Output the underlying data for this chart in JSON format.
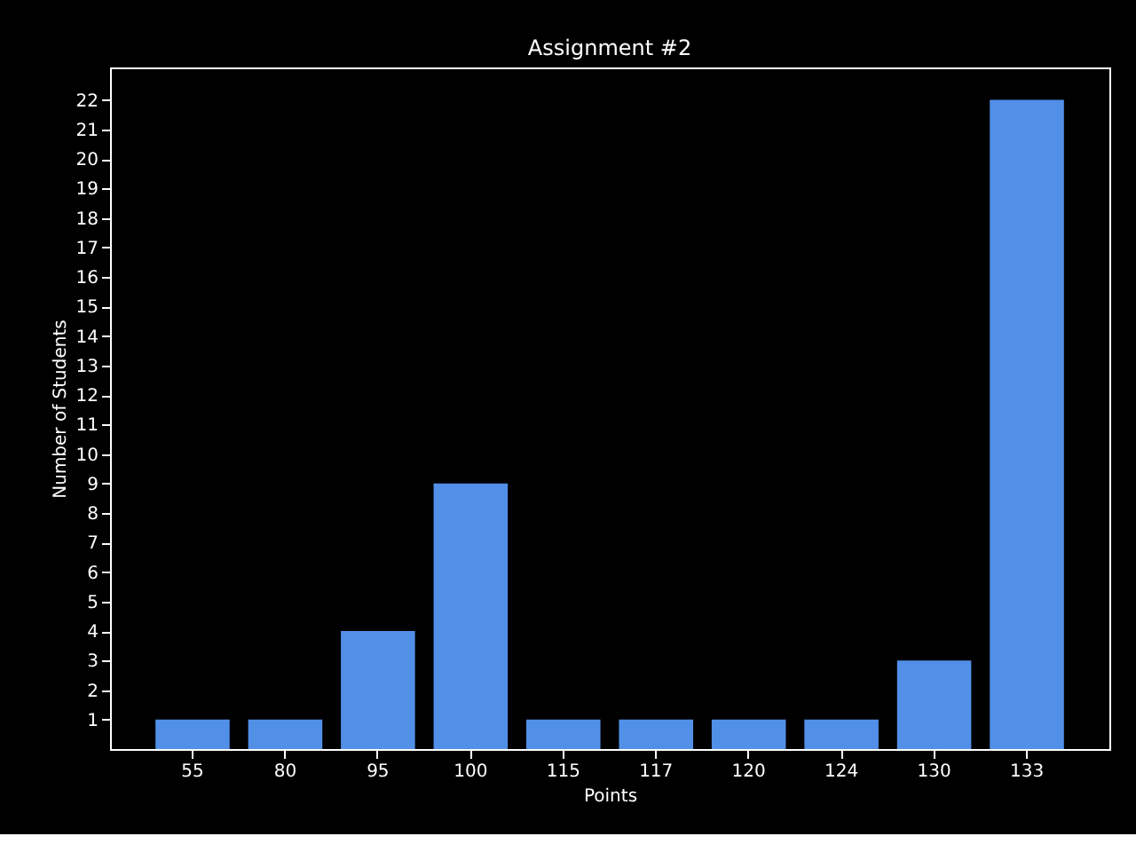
{
  "chart_data": {
    "type": "bar",
    "title": "Assignment #2",
    "xlabel": "Points",
    "ylabel": "Number of Students",
    "categories": [
      "55",
      "80",
      "95",
      "100",
      "115",
      "117",
      "120",
      "124",
      "130",
      "133"
    ],
    "values": [
      1,
      1,
      4,
      9,
      1,
      1,
      1,
      1,
      3,
      22
    ],
    "color": "#5290e8",
    "ylim": [
      0,
      23.1
    ],
    "yticks": [
      1,
      2,
      3,
      4,
      5,
      6,
      7,
      8,
      9,
      10,
      11,
      12,
      13,
      14,
      15,
      16,
      17,
      18,
      19,
      20,
      21,
      22
    ],
    "grid": false
  }
}
